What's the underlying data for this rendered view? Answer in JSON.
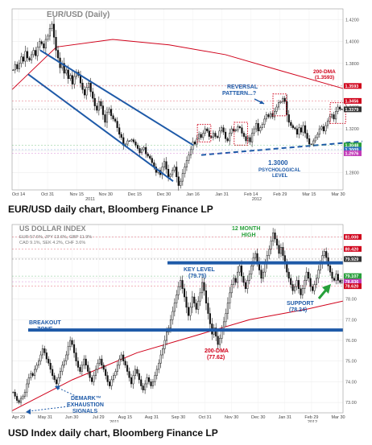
{
  "chart_data": [
    {
      "type": "candlestick",
      "title": "EUR/USD (Daily)",
      "caption": "EUR/USD daily chart, Bloomberg Finance LP",
      "x_ticks": [
        "Oct 14",
        "Oct 31",
        "Nov 15",
        "Nov 30",
        "Dec 15",
        "Dec 30",
        "Jan 16",
        "Jan 31",
        "Feb 14",
        "Feb 29",
        "Mar 15",
        "Mar 30"
      ],
      "years": [
        "2011",
        "2012"
      ],
      "y_ticks": [
        1.28,
        1.3,
        1.32,
        1.34,
        1.36,
        1.38,
        1.4,
        1.42
      ],
      "ylim": [
        1.264,
        1.43
      ],
      "right_labels": [
        {
          "text": "1.3593",
          "value": 1.3593,
          "color": "#d0021b"
        },
        {
          "text": "1.3456",
          "value": 1.3456,
          "color": "#d0021b"
        },
        {
          "text": "1.3379",
          "value": 1.3379,
          "color": "#333333"
        },
        {
          "text": "1.3048",
          "value": 1.3048,
          "color": "#27a03a"
        },
        {
          "text": "1.3009",
          "value": 1.3009,
          "color": "#2f6fbf"
        },
        {
          "text": "1.2976",
          "value": 1.2976,
          "color": "#c23bb8"
        }
      ],
      "annotations": [
        {
          "text": "200-DMA",
          "sub": "(1.3593)",
          "color": "#d0021b"
        },
        {
          "text": "REVERSAL",
          "sub": "PATTERN...?",
          "color": "#1e5aa8"
        },
        {
          "text": "1.3000",
          "sub": "PSYCHOLOGICAL",
          "sub2": "LEVEL",
          "color": "#1e5aa8"
        }
      ],
      "closes": [
        1.374,
        1.379,
        1.375,
        1.38,
        1.386,
        1.382,
        1.391,
        1.385,
        1.383,
        1.388,
        1.392,
        1.387,
        1.395,
        1.4,
        1.398,
        1.394,
        1.402,
        1.405,
        1.412,
        1.416,
        1.404,
        1.392,
        1.385,
        1.376,
        1.38,
        1.371,
        1.374,
        1.366,
        1.369,
        1.361,
        1.368,
        1.372,
        1.369,
        1.362,
        1.356,
        1.351,
        1.358,
        1.362,
        1.354,
        1.348,
        1.341,
        1.337,
        1.345,
        1.341,
        1.333,
        1.326,
        1.335,
        1.338,
        1.332,
        1.329,
        1.327,
        1.321,
        1.315,
        1.312,
        1.305,
        1.306,
        1.309,
        1.309,
        1.31,
        1.308,
        1.305,
        1.302,
        1.298,
        1.301,
        1.303,
        1.297,
        1.295,
        1.293,
        1.289,
        1.285,
        1.28,
        1.282,
        1.278,
        1.285,
        1.29,
        1.283,
        1.276,
        1.278,
        1.282,
        1.285,
        1.276,
        1.268,
        1.272,
        1.279,
        1.285,
        1.291,
        1.296,
        1.301,
        1.308,
        1.306,
        1.311,
        1.315,
        1.312,
        1.316,
        1.32,
        1.318,
        1.313,
        1.312,
        1.316,
        1.313,
        1.312,
        1.318,
        1.321,
        1.317,
        1.311,
        1.309,
        1.316,
        1.32,
        1.318,
        1.319,
        1.322,
        1.321,
        1.316,
        1.313,
        1.309,
        1.312,
        1.308,
        1.316,
        1.32,
        1.325,
        1.318,
        1.321,
        1.324,
        1.329,
        1.333,
        1.331,
        1.334,
        1.331,
        1.336,
        1.34,
        1.344,
        1.345,
        1.348,
        1.345,
        1.333,
        1.326,
        1.323,
        1.321,
        1.32,
        1.315,
        1.321,
        1.317,
        1.323,
        1.316,
        1.311,
        1.306,
        1.306,
        1.309,
        1.312,
        1.315,
        1.32,
        1.322,
        1.318,
        1.323,
        1.327,
        1.331,
        1.333,
        1.329,
        1.336,
        1.34,
        1.338,
        1.338
      ],
      "highlight_boxes": [
        {
          "from": 91,
          "to": 96
        },
        {
          "from": 109,
          "to": 114
        },
        {
          "from": 128,
          "to": 133
        },
        {
          "from": 156,
          "to": 162
        }
      ]
    },
    {
      "type": "candlestick",
      "title": "US DOLLAR INDEX",
      "weights": "EUR 57.6%, JPY 13.6%, GBP 11.9%",
      "weights2": "CAD 9.1%, SEK 4.2%, CHF 3.6%",
      "caption": "USD Index daily chart, Bloomberg Finance LP",
      "x_ticks": [
        "Apr 29",
        "May 31",
        "Jun 30",
        "Jul 29",
        "Aug 15",
        "Aug 31",
        "Sep 30",
        "Oct 31",
        "Nov 30",
        "Dec 30",
        "Jan 31",
        "Feb 29",
        "Mar 30"
      ],
      "years": [
        "2011",
        "2012"
      ],
      "y_ticks": [
        73.0,
        74.0,
        75.0,
        76.0,
        77.0,
        78.0,
        79.0,
        80.0,
        81.0
      ],
      "ylim": [
        72.5,
        81.6
      ],
      "right_labels": [
        {
          "text": "81.000",
          "value": 81.0,
          "color": "#d0021b"
        },
        {
          "text": "80.420",
          "value": 80.42,
          "color": "#d0021b"
        },
        {
          "text": "79.929",
          "value": 79.929,
          "color": "#333333"
        },
        {
          "text": "79.107",
          "value": 79.107,
          "color": "#27a03a"
        },
        {
          "text": "78.836",
          "value": 78.836,
          "color": "#c23bb8"
        },
        {
          "text": "78.620",
          "value": 78.62,
          "color": "#d0021b"
        }
      ],
      "annotations": [
        {
          "text": "12 MONTH",
          "sub": "HIGH",
          "color": "#27a03a"
        },
        {
          "text": "KEY LEVEL",
          "sub": "(79.75)",
          "color": "#1e5aa8"
        },
        {
          "text": "SUPPORT",
          "sub": "(78.24)",
          "color": "#1e5aa8"
        },
        {
          "text": "BREAKOUT",
          "sub": "ZONE",
          "color": "#1e5aa8"
        },
        {
          "text": "200-DMA",
          "sub": "(77.62)",
          "color": "#d0021b"
        },
        {
          "text": "DEMARK™",
          "sub": "EXHAUSTION",
          "sub2": "SIGNALS",
          "color": "#1e5aa8"
        }
      ],
      "closes": [
        73.5,
        73.3,
        73.1,
        73.0,
        73.2,
        73.3,
        73.5,
        73.9,
        74.2,
        74.4,
        74.3,
        74.6,
        74.8,
        75.0,
        75.3,
        75.6,
        75.4,
        75.1,
        74.9,
        74.6,
        74.3,
        74.1,
        73.9,
        74.2,
        74.5,
        74.8,
        75.0,
        75.3,
        75.7,
        76.0,
        75.8,
        75.4,
        75.0,
        74.7,
        74.5,
        74.8,
        75.1,
        74.8,
        74.5,
        74.2,
        74.0,
        74.3,
        74.6,
        74.9,
        75.1,
        74.8,
        74.6,
        74.3,
        74.0,
        73.8,
        74.1,
        74.3,
        74.5,
        74.8,
        75.1,
        75.3,
        75.0,
        74.8,
        74.5,
        74.2,
        73.9,
        74.3,
        74.6,
        74.4,
        74.1,
        73.8,
        73.6,
        73.9,
        74.2,
        74.0,
        73.8,
        74.0,
        74.3,
        74.6,
        74.9,
        75.3,
        75.6,
        76.0,
        76.4,
        76.6,
        77.0,
        77.4,
        77.8,
        78.2,
        78.6,
        78.9,
        78.5,
        78.1,
        77.6,
        77.2,
        77.6,
        78.1,
        77.8,
        77.5,
        77.9,
        78.3,
        78.8,
        78.4,
        77.8,
        77.3,
        76.8,
        76.3,
        76.6,
        76.2,
        75.8,
        76.1,
        76.5,
        76.9,
        77.3,
        77.8,
        78.3,
        78.7,
        79.0,
        78.8,
        79.3,
        79.6,
        79.1,
        78.8,
        78.5,
        78.9,
        79.2,
        79.6,
        80.0,
        80.2,
        79.8,
        79.4,
        79.0,
        79.3,
        79.7,
        80.1,
        80.4,
        80.8,
        81.2,
        80.9,
        80.6,
        80.2,
        80.5,
        80.1,
        79.7,
        79.3,
        79.0,
        78.7,
        78.4,
        78.6,
        78.9,
        78.5,
        78.2,
        78.5,
        78.9,
        79.3,
        79.0,
        78.6,
        78.4,
        78.7,
        79.0,
        79.4,
        79.7,
        80.1,
        80.3,
        80.0,
        79.6,
        79.3,
        79.0,
        78.9,
        79.2,
        78.9,
        78.8,
        78.9
      ]
    }
  ]
}
